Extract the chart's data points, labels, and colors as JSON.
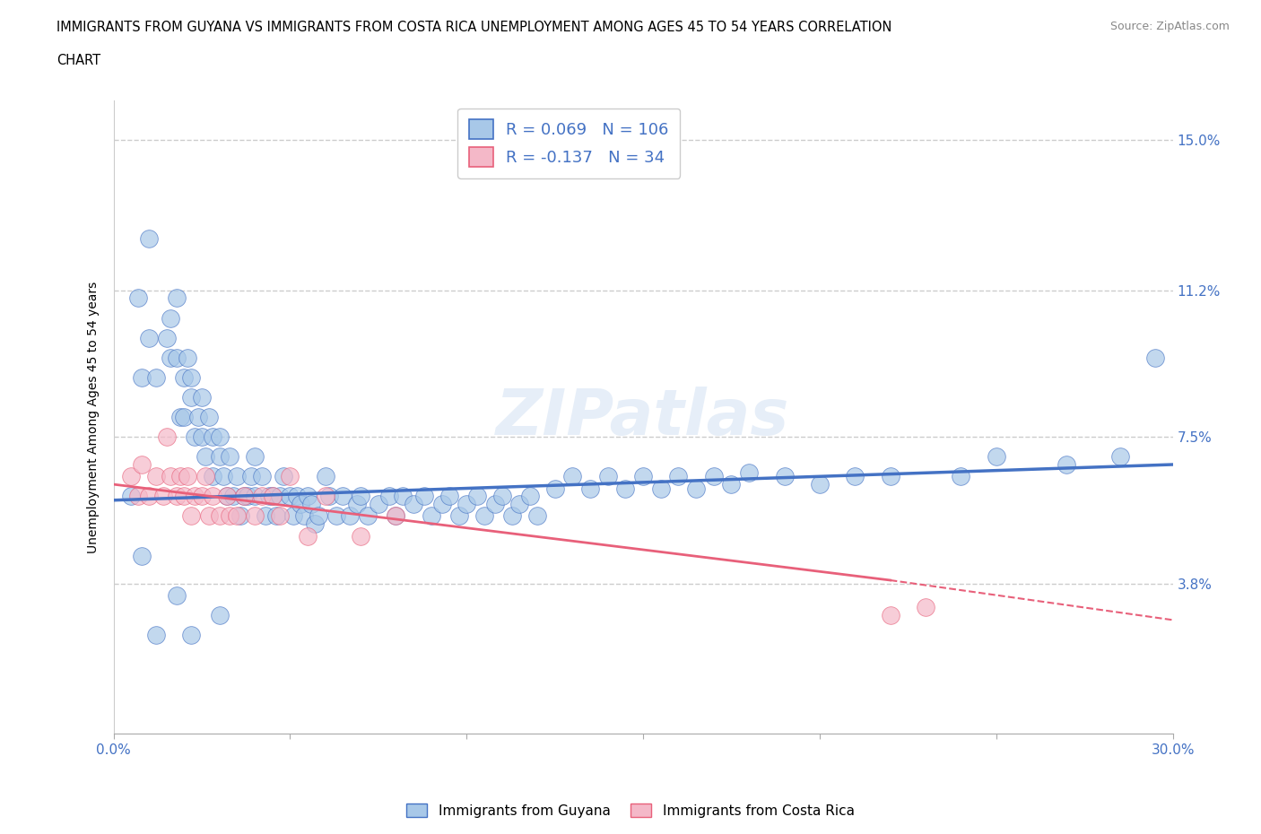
{
  "title_line1": "IMMIGRANTS FROM GUYANA VS IMMIGRANTS FROM COSTA RICA UNEMPLOYMENT AMONG AGES 45 TO 54 YEARS CORRELATION",
  "title_line2": "CHART",
  "source": "Source: ZipAtlas.com",
  "ylabel": "Unemployment Among Ages 45 to 54 years",
  "xlim": [
    0.0,
    0.3
  ],
  "ylim": [
    0.0,
    0.16
  ],
  "xtick_positions": [
    0.0,
    0.05,
    0.1,
    0.15,
    0.2,
    0.25,
    0.3
  ],
  "xticklabels": [
    "0.0%",
    "",
    "",
    "",
    "",
    "",
    "30.0%"
  ],
  "ytick_vals": [
    0.038,
    0.075,
    0.112,
    0.15
  ],
  "ytick_labels": [
    "3.8%",
    "7.5%",
    "11.2%",
    "15.0%"
  ],
  "watermark": "ZIPatlas",
  "guyana_color": "#a8c8e8",
  "costa_rica_color": "#f4b8c8",
  "guyana_line_color": "#4472c4",
  "costa_rica_line_color": "#e8607a",
  "R_guyana": 0.069,
  "N_guyana": 106,
  "R_costa_rica": -0.137,
  "N_costa_rica": 34,
  "legend_label_guyana": "Immigrants from Guyana",
  "legend_label_costa_rica": "Immigrants from Costa Rica",
  "guyana_trend_x0": 0.0,
  "guyana_trend_y0": 0.059,
  "guyana_trend_x1": 0.3,
  "guyana_trend_y1": 0.068,
  "costa_rica_trend_x0": 0.0,
  "costa_rica_trend_y0": 0.063,
  "costa_rica_trend_x1": 0.3,
  "costa_rica_trend_y1": 0.03,
  "guyana_x": [
    0.005,
    0.007,
    0.008,
    0.01,
    0.01,
    0.012,
    0.015,
    0.016,
    0.016,
    0.018,
    0.018,
    0.019,
    0.02,
    0.02,
    0.021,
    0.022,
    0.022,
    0.023,
    0.024,
    0.025,
    0.025,
    0.026,
    0.027,
    0.028,
    0.028,
    0.03,
    0.03,
    0.031,
    0.032,
    0.033,
    0.034,
    0.035,
    0.036,
    0.037,
    0.038,
    0.039,
    0.04,
    0.04,
    0.042,
    0.043,
    0.044,
    0.045,
    0.046,
    0.047,
    0.048,
    0.05,
    0.051,
    0.052,
    0.053,
    0.054,
    0.055,
    0.056,
    0.057,
    0.058,
    0.06,
    0.061,
    0.063,
    0.065,
    0.067,
    0.069,
    0.07,
    0.072,
    0.075,
    0.078,
    0.08,
    0.082,
    0.085,
    0.088,
    0.09,
    0.093,
    0.095,
    0.098,
    0.1,
    0.103,
    0.105,
    0.108,
    0.11,
    0.113,
    0.115,
    0.118,
    0.12,
    0.125,
    0.13,
    0.135,
    0.14,
    0.145,
    0.15,
    0.155,
    0.16,
    0.165,
    0.17,
    0.175,
    0.18,
    0.19,
    0.2,
    0.21,
    0.22,
    0.24,
    0.25,
    0.27,
    0.285,
    0.295,
    0.008,
    0.012,
    0.018,
    0.022,
    0.03
  ],
  "guyana_y": [
    0.06,
    0.11,
    0.09,
    0.125,
    0.1,
    0.09,
    0.1,
    0.105,
    0.095,
    0.11,
    0.095,
    0.08,
    0.09,
    0.08,
    0.095,
    0.085,
    0.09,
    0.075,
    0.08,
    0.085,
    0.075,
    0.07,
    0.08,
    0.065,
    0.075,
    0.07,
    0.075,
    0.065,
    0.06,
    0.07,
    0.06,
    0.065,
    0.055,
    0.06,
    0.06,
    0.065,
    0.07,
    0.06,
    0.065,
    0.055,
    0.06,
    0.06,
    0.055,
    0.06,
    0.065,
    0.06,
    0.055,
    0.06,
    0.058,
    0.055,
    0.06,
    0.058,
    0.053,
    0.055,
    0.065,
    0.06,
    0.055,
    0.06,
    0.055,
    0.058,
    0.06,
    0.055,
    0.058,
    0.06,
    0.055,
    0.06,
    0.058,
    0.06,
    0.055,
    0.058,
    0.06,
    0.055,
    0.058,
    0.06,
    0.055,
    0.058,
    0.06,
    0.055,
    0.058,
    0.06,
    0.055,
    0.062,
    0.065,
    0.062,
    0.065,
    0.062,
    0.065,
    0.062,
    0.065,
    0.062,
    0.065,
    0.063,
    0.066,
    0.065,
    0.063,
    0.065,
    0.065,
    0.065,
    0.07,
    0.068,
    0.07,
    0.095,
    0.045,
    0.025,
    0.035,
    0.025,
    0.03
  ],
  "costa_rica_x": [
    0.005,
    0.007,
    0.008,
    0.01,
    0.012,
    0.014,
    0.015,
    0.016,
    0.018,
    0.019,
    0.02,
    0.021,
    0.022,
    0.023,
    0.025,
    0.026,
    0.027,
    0.028,
    0.03,
    0.032,
    0.033,
    0.035,
    0.037,
    0.04,
    0.042,
    0.045,
    0.047,
    0.05,
    0.055,
    0.06,
    0.07,
    0.08,
    0.22,
    0.23
  ],
  "costa_rica_y": [
    0.065,
    0.06,
    0.068,
    0.06,
    0.065,
    0.06,
    0.075,
    0.065,
    0.06,
    0.065,
    0.06,
    0.065,
    0.055,
    0.06,
    0.06,
    0.065,
    0.055,
    0.06,
    0.055,
    0.06,
    0.055,
    0.055,
    0.06,
    0.055,
    0.06,
    0.06,
    0.055,
    0.065,
    0.05,
    0.06,
    0.05,
    0.055,
    0.03,
    0.032
  ]
}
